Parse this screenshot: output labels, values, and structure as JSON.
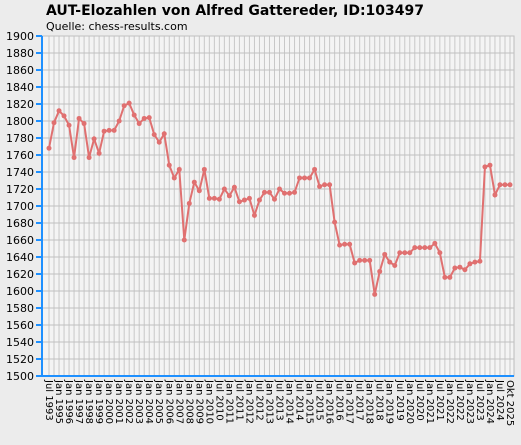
{
  "chart_data": {
    "type": "line",
    "title": "AUT-Elozahlen von Alfred Gattereder, ID:103497",
    "subtitle": "Quelle: chess-results.com",
    "categories": [
      "Jul 1993",
      null,
      "Jan 1995",
      null,
      "Jan 1996",
      null,
      "Jan 1997",
      null,
      "Jan 1998",
      null,
      "Jan 1999",
      null,
      "Jan 2000",
      null,
      "Jan 2001",
      null,
      "Jan 2002",
      null,
      "Jan 2003",
      null,
      "Jan 2004",
      null,
      "Jan 2005",
      null,
      "Jan 2006",
      null,
      "Jan 2007",
      null,
      "Jan 2008",
      null,
      "Jan 2009",
      null,
      "Jan 2010",
      null,
      "Jul 2010",
      null,
      "Jan 2011",
      null,
      "Jul 2011",
      null,
      "Jan 2012",
      null,
      "Jul 2012",
      null,
      "Jan 2013",
      null,
      "Jul 2013",
      null,
      "Jan 2014",
      null,
      "Jul 2014",
      null,
      "Jan 2015",
      null,
      "Jul 2015",
      null,
      "Jan 2016",
      null,
      "Jul 2016",
      null,
      "Jan 2017",
      null,
      "Jul 2017",
      null,
      "Jan 2018",
      null,
      "Jul 2018",
      null,
      "Jan 2019",
      null,
      "Jul 2019",
      null,
      "Jan 2020",
      null,
      "Jul 2020",
      null,
      "Jan 2021",
      null,
      "Jul 2021",
      null,
      "Jan 2022",
      null,
      "Jul 2022",
      null,
      "Jan 2023",
      null,
      "Jul 2023",
      null,
      "Jan 2024",
      null,
      "Jul 2024",
      null,
      "Okt 2025"
    ],
    "values": [
      1768,
      1798,
      1812,
      1806,
      1795,
      1757,
      1803,
      1797,
      1757,
      1779,
      1762,
      1788,
      1789,
      1789,
      1800,
      1818,
      1821,
      1807,
      1797,
      1803,
      1804,
      1784,
      1775,
      1785,
      1748,
      1733,
      1743,
      1660,
      1703,
      1728,
      1718,
      1743,
      1709,
      1709,
      1708,
      1720,
      1712,
      1722,
      1705,
      1707,
      1709,
      1689,
      1707,
      1716,
      1716,
      1708,
      1720,
      1715,
      1715,
      1716,
      1733,
      1733,
      1733,
      1743,
      1723,
      1725,
      1725,
      1681,
      1654,
      1655,
      1655,
      1633,
      1636,
      1636,
      1636,
      1596,
      1623,
      1643,
      1634,
      1630,
      1645,
      1645,
      1645,
      1651,
      1651,
      1651,
      1651,
      1656,
      1645,
      1616,
      1616,
      1627,
      1628,
      1625,
      1632,
      1634,
      1635,
      1746,
      1748,
      1713,
      1725,
      1725,
      1725
    ],
    "color": "#e07070",
    "ylim": [
      1500,
      1900
    ],
    "yticks": [
      1500,
      1520,
      1540,
      1560,
      1580,
      1600,
      1620,
      1640,
      1660,
      1680,
      1700,
      1720,
      1740,
      1760,
      1780,
      1800,
      1820,
      1840,
      1860,
      1880,
      1900
    ],
    "grid": true
  }
}
